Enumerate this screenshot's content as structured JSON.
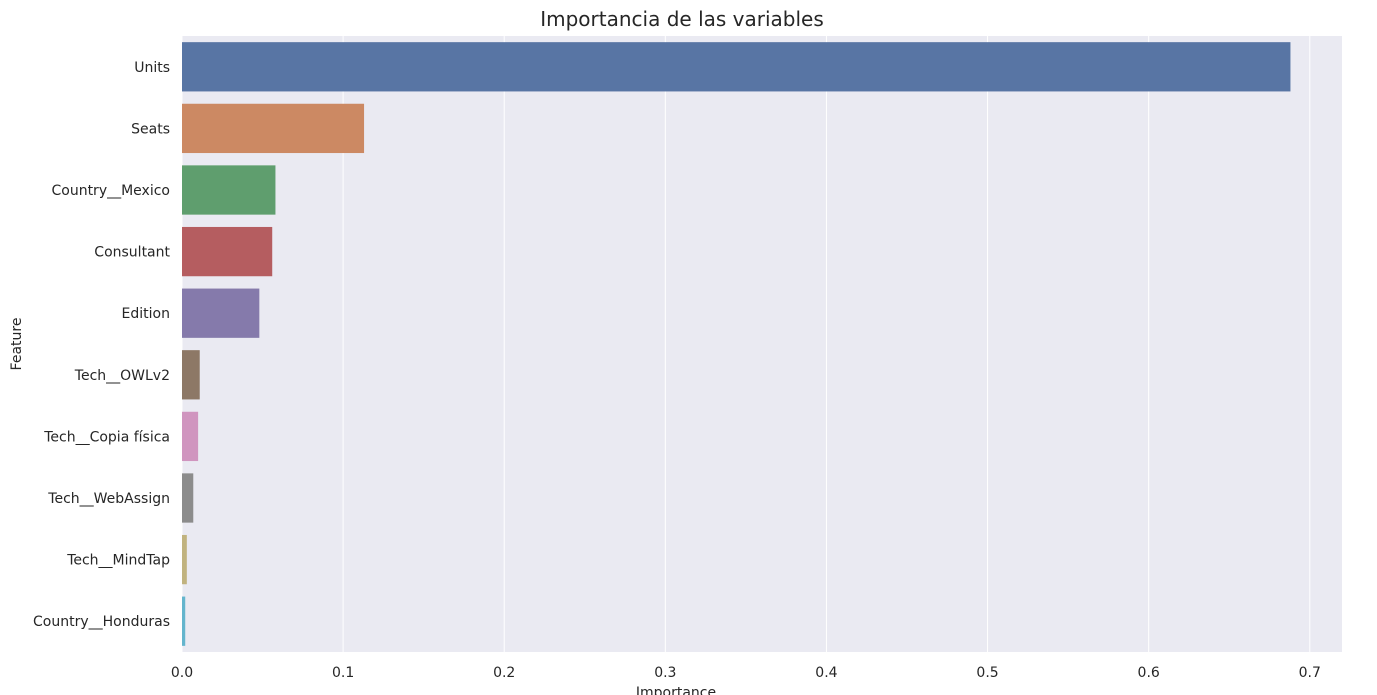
{
  "chart_data": {
    "type": "bar",
    "orientation": "horizontal",
    "title": "Importancia de las variables",
    "xlabel": "Importance",
    "ylabel": "Feature",
    "xlim": [
      0,
      0.72
    ],
    "xticks": [
      "0.0",
      "0.1",
      "0.2",
      "0.3",
      "0.4",
      "0.5",
      "0.6",
      "0.7"
    ],
    "grid": true,
    "categories": [
      "Units",
      "Seats",
      "Country__Mexico",
      "Consultant",
      "Edition",
      "Tech__OWLv2",
      "Tech__Copia física",
      "Tech__WebAssign",
      "Tech__MindTap",
      "Country__Honduras"
    ],
    "values": [
      0.688,
      0.113,
      0.058,
      0.056,
      0.048,
      0.011,
      0.01,
      0.007,
      0.003,
      0.002
    ],
    "colors": [
      "#5875a4",
      "#cc8963",
      "#5f9e6e",
      "#b55d60",
      "#857aab",
      "#8d7866",
      "#d095bf",
      "#8c8c8c",
      "#c1b37f",
      "#64b5cd"
    ],
    "background": "#eaeaf2"
  }
}
